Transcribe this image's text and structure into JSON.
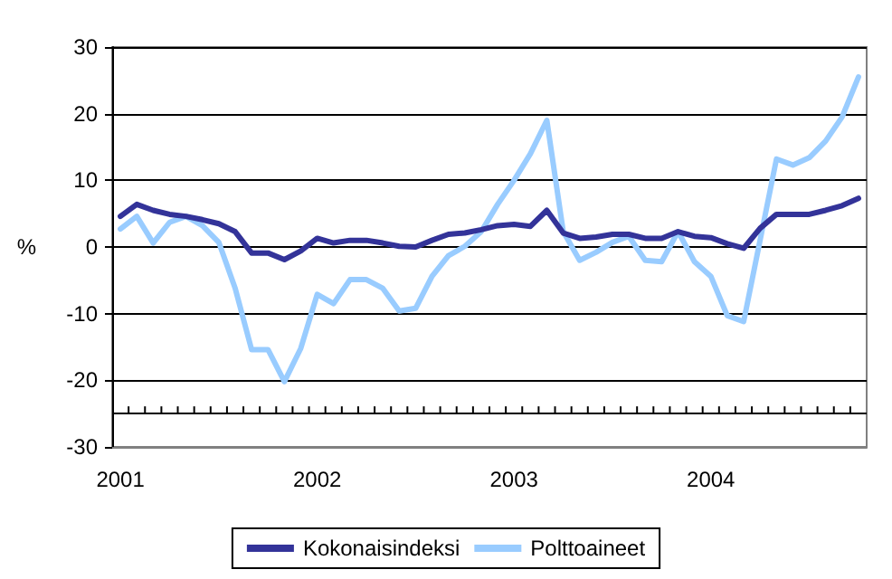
{
  "chart_data": {
    "type": "line",
    "ylabel": "%",
    "categories": [
      "2001",
      null,
      null,
      null,
      null,
      null,
      null,
      null,
      null,
      null,
      null,
      null,
      "2002",
      null,
      null,
      null,
      null,
      null,
      null,
      null,
      null,
      null,
      null,
      null,
      "2003",
      null,
      null,
      null,
      null,
      null,
      null,
      null,
      null,
      null,
      null,
      null,
      "2004",
      null,
      null,
      null,
      null,
      null,
      null,
      null,
      null,
      null
    ],
    "series": [
      {
        "name": "Kokonaisindeksi",
        "color": "#333399",
        "values": [
          4.6,
          6.4,
          5.5,
          4.9,
          4.6,
          4.1,
          3.5,
          2.3,
          -0.9,
          -0.9,
          -1.9,
          -0.6,
          1.3,
          0.6,
          1.0,
          1.0,
          0.6,
          0.1,
          0,
          1.0,
          1.9,
          2.1,
          2.6,
          3.2,
          3.4,
          3.1,
          5.5,
          2.1,
          1.3,
          1.5,
          1.9,
          1.9,
          1.3,
          1.3,
          2.3,
          1.6,
          1.4,
          0.5,
          -0.2,
          2.8,
          4.9,
          4.9,
          4.9,
          5.5,
          6.2,
          7.3
        ]
      },
      {
        "name": "Polttoaineet",
        "color": "#99ccff",
        "values": [
          2.7,
          4.6,
          0.6,
          3.7,
          4.6,
          3.2,
          0.7,
          -6.2,
          -15.4,
          -15.4,
          -20.2,
          -15.2,
          -7.1,
          -8.5,
          -4.9,
          -4.9,
          -6.2,
          -9.6,
          -9.2,
          -4.4,
          -1.3,
          0.1,
          2.3,
          6.4,
          10,
          14,
          19,
          2.3,
          -2,
          -0.8,
          0.7,
          1.6,
          -2,
          -2.2,
          2.3,
          -2.2,
          -4.4,
          -10.3,
          -11.2,
          1,
          13.2,
          12.3,
          13.4,
          15.9,
          19.5,
          25.5
        ]
      }
    ],
    "ylim": [
      -30,
      30
    ],
    "yticks": [
      -30,
      -20,
      -10,
      0,
      10,
      20,
      30
    ],
    "ref_lines": [
      {
        "axis": "y",
        "value": -25,
        "color": "#000000"
      }
    ],
    "grid": "y",
    "legend": "bottom",
    "marker": "none",
    "line_style": "solid"
  }
}
